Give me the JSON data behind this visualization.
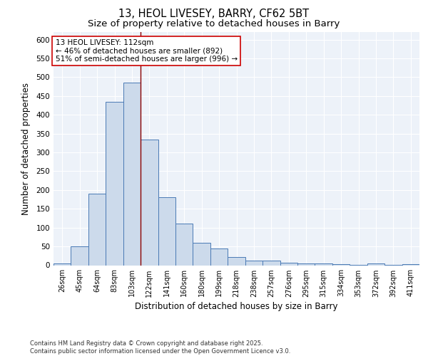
{
  "title1": "13, HEOL LIVESEY, BARRY, CF62 5BT",
  "title2": "Size of property relative to detached houses in Barry",
  "xlabel": "Distribution of detached houses by size in Barry",
  "ylabel": "Number of detached properties",
  "categories": [
    "26sqm",
    "45sqm",
    "64sqm",
    "83sqm",
    "103sqm",
    "122sqm",
    "141sqm",
    "160sqm",
    "180sqm",
    "199sqm",
    "218sqm",
    "238sqm",
    "257sqm",
    "276sqm",
    "295sqm",
    "315sqm",
    "334sqm",
    "353sqm",
    "372sqm",
    "392sqm",
    "411sqm"
  ],
  "values": [
    5,
    50,
    190,
    435,
    485,
    335,
    180,
    110,
    60,
    45,
    22,
    12,
    12,
    7,
    4,
    4,
    2,
    1,
    4,
    1,
    3
  ],
  "bar_color": "#ccdaeb",
  "bar_edge_color": "#4a7ab5",
  "vline_pos": 4.5,
  "vline_color": "#8b0000",
  "ylim": [
    0,
    620
  ],
  "yticks": [
    0,
    50,
    100,
    150,
    200,
    250,
    300,
    350,
    400,
    450,
    500,
    550,
    600
  ],
  "annotation_text": "13 HEOL LIVESEY: 112sqm\n← 46% of detached houses are smaller (892)\n51% of semi-detached houses are larger (996) →",
  "annotation_box_color": "#ffffff",
  "annotation_box_edge_color": "#cc0000",
  "footer_text": "Contains HM Land Registry data © Crown copyright and database right 2025.\nContains public sector information licensed under the Open Government Licence v3.0.",
  "bg_color": "#edf2f9",
  "grid_color": "#ffffff",
  "fig_bg_color": "#ffffff"
}
